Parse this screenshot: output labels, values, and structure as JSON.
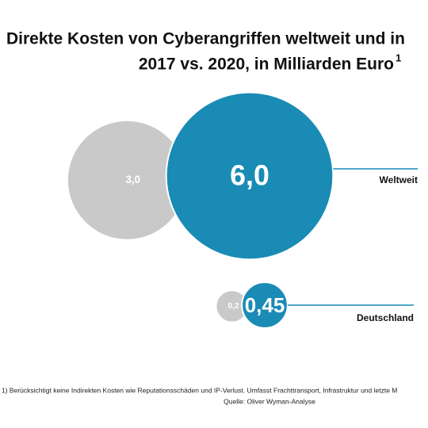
{
  "chart_data": {
    "type": "bubble",
    "title_lines": [
      "Direkte Kosten von Cyberangriffen weltweit und in",
      "2017 vs. 2020, in Milliarden Euro"
    ],
    "title_footnote_mark": "1",
    "categories": [
      "Weltweit",
      "Deutschland"
    ],
    "series": [
      {
        "color": "#c9c9c9",
        "values": [
          3.0,
          0.2
        ],
        "value_labels": [
          "3,0",
          "0,2"
        ]
      },
      {
        "color": "#1a8bb5",
        "values": [
          6.0,
          0.45
        ],
        "value_labels": [
          "6,0",
          "0,45"
        ]
      }
    ],
    "footnote": "1) Berücksichtigt keine Indirekten Kosten wie Reputationsschäden und IP-Verlust. Umfasst Frachttransport, Infrastruktur und letzte M",
    "source": "Quelle: Oliver Wyman-Analyse"
  }
}
